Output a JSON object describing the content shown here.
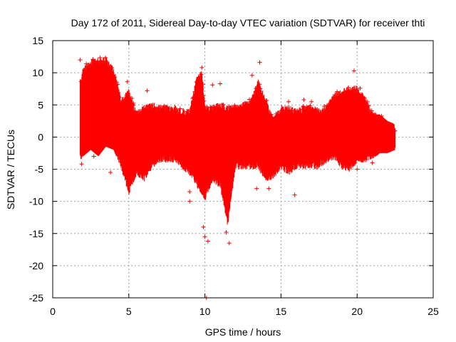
{
  "chart_data": {
    "type": "scatter",
    "title": "Day 172 of 2011, Sidereal Day-to-day VTEC variation (SDTVAR) for receiver thti",
    "xlabel": "GPS time / hours",
    "ylabel": "SDTVAR / TECUs",
    "xlim": [
      0,
      25
    ],
    "ylim": [
      -25,
      15
    ],
    "xticks": [
      0,
      5,
      10,
      15,
      20,
      25
    ],
    "yticks": [
      15,
      10,
      5,
      0,
      -5,
      -10,
      -15,
      -20,
      -25
    ],
    "grid": true,
    "marker": "+",
    "series": [
      {
        "name": "SDTVAR",
        "color": "#ff0000",
        "envelope": {
          "description": "approximate upper/lower bounds of the dense point cloud",
          "x": [
            1.8,
            2.0,
            2.5,
            3.0,
            3.5,
            4.0,
            4.5,
            5.0,
            5.5,
            6.0,
            6.5,
            7.0,
            7.5,
            8.0,
            8.5,
            9.0,
            9.5,
            9.8,
            10.0,
            10.5,
            11.0,
            11.5,
            12.0,
            12.5,
            13.0,
            13.5,
            14.0,
            14.5,
            15.0,
            15.5,
            16.0,
            16.5,
            17.0,
            17.5,
            18.0,
            18.5,
            19.0,
            19.5,
            20.0,
            20.5,
            21.0,
            21.5,
            22.0,
            22.5
          ],
          "upper": [
            9.0,
            11.0,
            12.0,
            12.5,
            12.5,
            11.0,
            6.0,
            7.5,
            4.0,
            5.0,
            5.5,
            5.0,
            5.0,
            5.0,
            4.5,
            4.5,
            10.0,
            10.5,
            5.0,
            5.0,
            5.5,
            5.0,
            5.0,
            5.5,
            6.0,
            9.0,
            6.0,
            3.0,
            5.0,
            5.0,
            4.5,
            5.0,
            5.0,
            4.5,
            5.0,
            7.0,
            7.5,
            8.0,
            8.0,
            6.5,
            4.0,
            3.5,
            2.5,
            2.0
          ],
          "lower": [
            -4.0,
            -3.0,
            -2.0,
            -3.0,
            -1.5,
            -2.0,
            -5.0,
            -9.0,
            -6.0,
            -7.0,
            -5.0,
            -4.0,
            -4.0,
            -4.0,
            -5.0,
            -6.0,
            -8.0,
            -9.0,
            -10.0,
            -7.0,
            -8.0,
            -14.0,
            -5.0,
            -5.0,
            -5.0,
            -5.0,
            -7.0,
            -6.5,
            -5.0,
            -6.0,
            -5.0,
            -5.0,
            -5.0,
            -5.0,
            -4.0,
            -3.5,
            -5.0,
            -5.5,
            -4.0,
            -4.0,
            -3.5,
            -2.5,
            -2.5,
            -2.0
          ]
        },
        "outliers": [
          [
            1.8,
            12.0
          ],
          [
            1.9,
            -4.2
          ],
          [
            2.7,
            -3.0
          ],
          [
            3.8,
            -5.5
          ],
          [
            4.9,
            8.6
          ],
          [
            6.2,
            7.2
          ],
          [
            9.0,
            -8.5
          ],
          [
            9.0,
            -10.0
          ],
          [
            9.8,
            10.8
          ],
          [
            9.9,
            -14.0
          ],
          [
            10.0,
            -15.5
          ],
          [
            10.1,
            -25.0
          ],
          [
            10.2,
            -16.2
          ],
          [
            10.5,
            8.1
          ],
          [
            11.0,
            8.3
          ],
          [
            11.4,
            -14.8
          ],
          [
            11.6,
            -16.5
          ],
          [
            13.1,
            9.6
          ],
          [
            13.6,
            11.6
          ],
          [
            13.4,
            -8.0
          ],
          [
            14.0,
            -6.0
          ],
          [
            14.2,
            -8.0
          ],
          [
            15.5,
            5.5
          ],
          [
            15.9,
            -9.0
          ],
          [
            16.5,
            5.8
          ],
          [
            17.0,
            5.5
          ],
          [
            19.8,
            10.3
          ],
          [
            20.2,
            7.6
          ],
          [
            20.0,
            -5.0
          ],
          [
            21.0,
            -4.0
          ]
        ]
      }
    ]
  }
}
